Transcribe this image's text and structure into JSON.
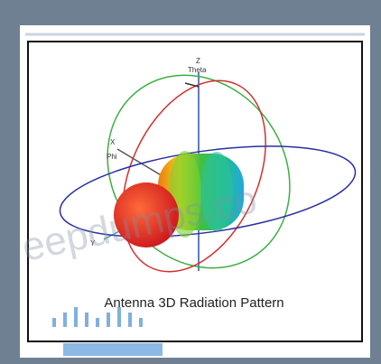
{
  "figure": {
    "caption": "Antenna 3D Radiation Pattern",
    "axes": {
      "z": "Z",
      "theta": "Theta",
      "x": "X",
      "phi": "Phi",
      "y": "Y"
    }
  },
  "watermark": "eepdumps.co"
}
